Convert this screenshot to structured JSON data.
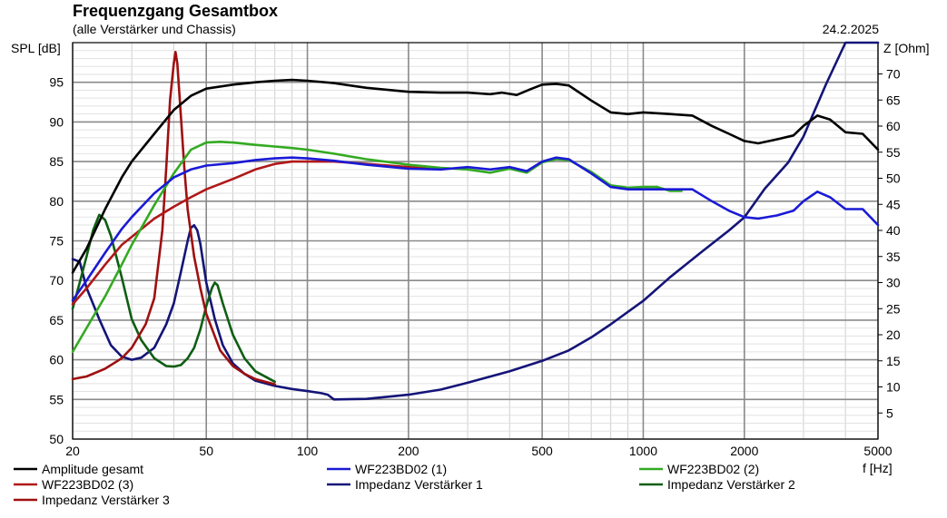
{
  "chart_data": {
    "type": "line",
    "title": "Frequenzgang Gesamtbox",
    "subtitle": "(alle Verstärker und Chassis)",
    "date": "24.2.2025",
    "xlabel": "f [Hz]",
    "ylabel_left": "SPL [dB]",
    "ylabel_right": "Z [Ohm]",
    "x_scale": "log",
    "xlim": [
      20,
      5000
    ],
    "ylim_left": [
      50,
      100
    ],
    "ylim_right": [
      0,
      76
    ],
    "x_ticks": [
      20,
      50,
      100,
      200,
      500,
      1000,
      2000,
      5000
    ],
    "x_tick_labels": [
      "20",
      "50",
      "100",
      "200",
      "500",
      "1000",
      "2000",
      "5000"
    ],
    "y_ticks_left": [
      50,
      55,
      60,
      65,
      70,
      75,
      80,
      85,
      90,
      95
    ],
    "y_tick_labels_left": [
      "50",
      "55",
      "60",
      "65",
      "70",
      "75",
      "80",
      "85",
      "90",
      "95"
    ],
    "y_ticks_right": [
      5,
      10,
      15,
      20,
      25,
      30,
      35,
      40,
      45,
      50,
      55,
      60,
      65,
      70
    ],
    "y_tick_labels_right": [
      "5",
      "10",
      "15",
      "20",
      "25",
      "30",
      "35",
      "40",
      "45",
      "50",
      "55",
      "60",
      "65",
      "70"
    ],
    "grid": true,
    "legend_placement": "bottom",
    "series": [
      {
        "name": "Amplitude gesamt",
        "axis": "left",
        "color": "#000000",
        "points": [
          [
            20,
            71
          ],
          [
            22,
            74
          ],
          [
            25,
            79
          ],
          [
            28,
            83
          ],
          [
            30,
            85
          ],
          [
            35,
            88.5
          ],
          [
            40,
            91.5
          ],
          [
            45,
            93.3
          ],
          [
            50,
            94.2
          ],
          [
            60,
            94.7
          ],
          [
            70,
            95
          ],
          [
            80,
            95.2
          ],
          [
            90,
            95.3
          ],
          [
            100,
            95.2
          ],
          [
            120,
            94.9
          ],
          [
            150,
            94.3
          ],
          [
            200,
            93.8
          ],
          [
            250,
            93.7
          ],
          [
            300,
            93.7
          ],
          [
            350,
            93.5
          ],
          [
            380,
            93.7
          ],
          [
            420,
            93.4
          ],
          [
            460,
            94.1
          ],
          [
            500,
            94.7
          ],
          [
            550,
            94.8
          ],
          [
            600,
            94.6
          ],
          [
            700,
            92.7
          ],
          [
            800,
            91.2
          ],
          [
            900,
            91
          ],
          [
            1000,
            91.2
          ],
          [
            1200,
            91
          ],
          [
            1400,
            90.8
          ],
          [
            1600,
            89.5
          ],
          [
            1800,
            88.5
          ],
          [
            2000,
            87.6
          ],
          [
            2200,
            87.3
          ],
          [
            2500,
            87.8
          ],
          [
            2800,
            88.3
          ],
          [
            3000,
            89.5
          ],
          [
            3300,
            90.8
          ],
          [
            3600,
            90.3
          ],
          [
            4000,
            88.7
          ],
          [
            4500,
            88.5
          ],
          [
            5000,
            86.5
          ]
        ]
      },
      {
        "name": "WF223BD02 (1)",
        "axis": "left",
        "color": "#1a1ad6",
        "points": [
          [
            20,
            67.5
          ],
          [
            22,
            70
          ],
          [
            25,
            73.5
          ],
          [
            28,
            76.5
          ],
          [
            30,
            78
          ],
          [
            35,
            81
          ],
          [
            40,
            83
          ],
          [
            45,
            84
          ],
          [
            50,
            84.5
          ],
          [
            60,
            84.8
          ],
          [
            70,
            85.2
          ],
          [
            80,
            85.4
          ],
          [
            90,
            85.5
          ],
          [
            100,
            85.4
          ],
          [
            120,
            85.1
          ],
          [
            150,
            84.6
          ],
          [
            200,
            84.1
          ],
          [
            250,
            84
          ],
          [
            300,
            84.3
          ],
          [
            350,
            84
          ],
          [
            400,
            84.3
          ],
          [
            450,
            83.8
          ],
          [
            500,
            85
          ],
          [
            550,
            85.5
          ],
          [
            600,
            85.3
          ],
          [
            700,
            83.5
          ],
          [
            800,
            81.8
          ],
          [
            900,
            81.5
          ],
          [
            1000,
            81.5
          ],
          [
            1200,
            81.5
          ],
          [
            1400,
            81.5
          ],
          [
            1600,
            80
          ],
          [
            1800,
            78.8
          ],
          [
            2000,
            78
          ],
          [
            2200,
            77.8
          ],
          [
            2500,
            78.2
          ],
          [
            2800,
            78.8
          ],
          [
            3000,
            80
          ],
          [
            3300,
            81.2
          ],
          [
            3600,
            80.5
          ],
          [
            4000,
            79
          ],
          [
            4500,
            79
          ],
          [
            5000,
            77
          ]
        ]
      },
      {
        "name": "WF223BD02 (2)",
        "axis": "left",
        "color": "#33aa22",
        "points": [
          [
            20,
            61
          ],
          [
            22,
            64
          ],
          [
            25,
            68
          ],
          [
            28,
            72
          ],
          [
            30,
            74.5
          ],
          [
            35,
            79.5
          ],
          [
            40,
            83.5
          ],
          [
            45,
            86.5
          ],
          [
            50,
            87.4
          ],
          [
            55,
            87.5
          ],
          [
            60,
            87.4
          ],
          [
            70,
            87.1
          ],
          [
            80,
            86.9
          ],
          [
            90,
            86.7
          ],
          [
            100,
            86.5
          ],
          [
            120,
            86
          ],
          [
            150,
            85.3
          ],
          [
            200,
            84.6
          ],
          [
            250,
            84.2
          ],
          [
            300,
            84
          ],
          [
            350,
            83.6
          ],
          [
            400,
            84.1
          ],
          [
            450,
            83.6
          ],
          [
            500,
            84.9
          ],
          [
            550,
            85.3
          ],
          [
            600,
            85.2
          ],
          [
            700,
            83.7
          ],
          [
            800,
            82
          ],
          [
            900,
            81.7
          ],
          [
            1000,
            81.8
          ],
          [
            1100,
            81.8
          ],
          [
            1200,
            81.3
          ],
          [
            1300,
            81.3
          ]
        ]
      },
      {
        "name": "WF223BD02 (3)",
        "axis": "left",
        "color": "#b01818",
        "points": [
          [
            20,
            67
          ],
          [
            22,
            69
          ],
          [
            25,
            72
          ],
          [
            28,
            74.5
          ],
          [
            30,
            75.5
          ],
          [
            35,
            77.8
          ],
          [
            40,
            79.3
          ],
          [
            45,
            80.5
          ],
          [
            50,
            81.5
          ],
          [
            60,
            82.8
          ],
          [
            70,
            84
          ],
          [
            80,
            84.7
          ],
          [
            90,
            85
          ],
          [
            100,
            85
          ],
          [
            120,
            85
          ],
          [
            150,
            84.7
          ],
          [
            200,
            84.3
          ],
          [
            250,
            84
          ]
        ]
      },
      {
        "name": "Impedanz Verstärker 1",
        "axis": "right",
        "color": "#141478",
        "points": [
          [
            20,
            34.5
          ],
          [
            21,
            34
          ],
          [
            22,
            29
          ],
          [
            24,
            23
          ],
          [
            26,
            18
          ],
          [
            28,
            15.8
          ],
          [
            30,
            15.2
          ],
          [
            32,
            15.6
          ],
          [
            35,
            17.5
          ],
          [
            38,
            22
          ],
          [
            40,
            26
          ],
          [
            42,
            32
          ],
          [
            44,
            38
          ],
          [
            45,
            40.5
          ],
          [
            46,
            41
          ],
          [
            47,
            40
          ],
          [
            48,
            37.5
          ],
          [
            50,
            30
          ],
          [
            53,
            23
          ],
          [
            56,
            18
          ],
          [
            60,
            14.5
          ],
          [
            65,
            12.5
          ],
          [
            70,
            11.2
          ],
          [
            80,
            10.2
          ],
          [
            90,
            9.6
          ],
          [
            100,
            9.2
          ],
          [
            110,
            8.8
          ],
          [
            115,
            8.5
          ],
          [
            120,
            7.6
          ],
          [
            150,
            7.7
          ],
          [
            200,
            8.5
          ],
          [
            250,
            9.5
          ],
          [
            300,
            10.8
          ],
          [
            400,
            13
          ],
          [
            500,
            15
          ],
          [
            600,
            17
          ],
          [
            700,
            19.5
          ],
          [
            800,
            22
          ],
          [
            1000,
            26.5
          ],
          [
            1200,
            31
          ],
          [
            1500,
            36
          ],
          [
            1800,
            40
          ],
          [
            2000,
            42.5
          ],
          [
            2300,
            48
          ],
          [
            2700,
            53
          ],
          [
            3000,
            58
          ],
          [
            3500,
            68
          ],
          [
            4000,
            76
          ],
          [
            5000,
            76
          ]
        ]
      },
      {
        "name": "Impedanz Verstärker 2",
        "axis": "right",
        "color": "#0e5e12",
        "points": [
          [
            20,
            25
          ],
          [
            21,
            30
          ],
          [
            22,
            35
          ],
          [
            23,
            40
          ],
          [
            24,
            43
          ],
          [
            25,
            42
          ],
          [
            26,
            39
          ],
          [
            28,
            31
          ],
          [
            30,
            23
          ],
          [
            32,
            19
          ],
          [
            35,
            15.5
          ],
          [
            38,
            14
          ],
          [
            40,
            13.9
          ],
          [
            42,
            14.2
          ],
          [
            44,
            15.5
          ],
          [
            46,
            17.5
          ],
          [
            48,
            21
          ],
          [
            50,
            25.5
          ],
          [
            52,
            29
          ],
          [
            53,
            30
          ],
          [
            54,
            29.5
          ],
          [
            56,
            26
          ],
          [
            60,
            20
          ],
          [
            65,
            15.5
          ],
          [
            70,
            13
          ],
          [
            80,
            11
          ]
        ]
      },
      {
        "name": "Impedanz Verstärker 3",
        "axis": "right",
        "color": "#9e1010",
        "points": [
          [
            20,
            11.5
          ],
          [
            22,
            12
          ],
          [
            25,
            13.5
          ],
          [
            28,
            15.5
          ],
          [
            30,
            17.5
          ],
          [
            33,
            22
          ],
          [
            35,
            27
          ],
          [
            37,
            40
          ],
          [
            38,
            52
          ],
          [
            39,
            65
          ],
          [
            40,
            72
          ],
          [
            40.5,
            74.2
          ],
          [
            41,
            72
          ],
          [
            42,
            62
          ],
          [
            43,
            52
          ],
          [
            44,
            44
          ],
          [
            46,
            35
          ],
          [
            48,
            29
          ],
          [
            50,
            24
          ],
          [
            55,
            17
          ],
          [
            60,
            14
          ],
          [
            65,
            12.5
          ],
          [
            70,
            11.5
          ],
          [
            80,
            10.5
          ]
        ]
      }
    ]
  }
}
